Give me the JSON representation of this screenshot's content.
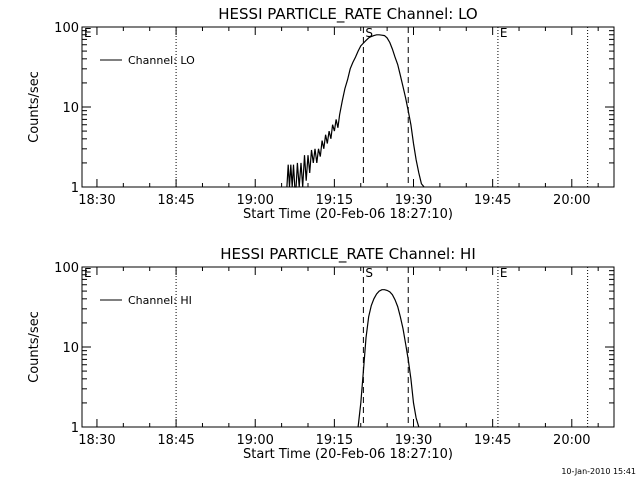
{
  "footer": "10-Jan-2010 15:41",
  "chart_data": [
    {
      "type": "line",
      "title": "HESSI PARTICLE_RATE Channel: LO",
      "xlabel": "Start Time (20-Feb-06 18:27:10)",
      "ylabel": "Counts/sec",
      "yscale": "log",
      "ylim": [
        1,
        100
      ],
      "xlim": [
        "18:27:10",
        "20:08:00"
      ],
      "ytick_labels": [
        "1",
        "10",
        "100"
      ],
      "xtick_labels": [
        "18:30",
        "18:45",
        "19:00",
        "19:15",
        "19:30",
        "19:45",
        "20:00"
      ],
      "legend": "Channel: LO",
      "legend_position": "top-left",
      "markers": {
        "left_E": "E",
        "S": "S",
        "right_E": "E"
      },
      "vertical_lines": {
        "dotted": [
          "18:45:00",
          "19:46:00",
          "20:03:00"
        ],
        "dashed": [
          "19:20:30",
          "19:29:00"
        ]
      },
      "series": [
        {
          "name": "Channel: LO",
          "x": [
            "19:06:00",
            "19:06:15",
            "19:06:30",
            "19:06:45",
            "19:07:00",
            "19:07:15",
            "19:07:30",
            "19:07:45",
            "19:08:00",
            "19:08:20",
            "19:08:40",
            "19:09:00",
            "19:09:20",
            "19:09:40",
            "19:10:00",
            "19:10:20",
            "19:10:40",
            "19:11:00",
            "19:11:20",
            "19:11:40",
            "19:12:00",
            "19:12:20",
            "19:12:40",
            "19:13:00",
            "19:13:20",
            "19:13:40",
            "19:14:00",
            "19:14:20",
            "19:14:40",
            "19:15:00",
            "19:15:20",
            "19:15:40",
            "19:16:00",
            "19:16:30",
            "19:17:00",
            "19:17:30",
            "19:18:00",
            "19:18:30",
            "19:19:00",
            "19:19:30",
            "19:20:00",
            "19:20:30",
            "19:21:00",
            "19:21:30",
            "19:22:00",
            "19:22:30",
            "19:23:00",
            "19:23:30",
            "19:24:00",
            "19:24:30",
            "19:25:00",
            "19:25:30",
            "19:26:00",
            "19:26:30",
            "19:27:00",
            "19:27:30",
            "19:28:00",
            "19:28:30",
            "19:29:00",
            "19:29:30",
            "19:30:00",
            "19:30:30",
            "19:31:00",
            "19:31:30",
            "19:32:00"
          ],
          "values": [
            1.0,
            1.9,
            1.0,
            1.9,
            1.0,
            1.9,
            1.0,
            1.0,
            2.0,
            1.0,
            2.0,
            1.0,
            2.5,
            1.2,
            2.5,
            1.5,
            2.9,
            2.0,
            3.0,
            2.0,
            3.0,
            2.4,
            3.8,
            3.0,
            4.5,
            3.5,
            5.0,
            4.0,
            6.0,
            5.0,
            7.0,
            5.5,
            8.0,
            12,
            17,
            22,
            30,
            36,
            42,
            50,
            58,
            63,
            68,
            73,
            76,
            78,
            80,
            80,
            79,
            78,
            73,
            64,
            53,
            42,
            34,
            25,
            18,
            13,
            9,
            6,
            3.5,
            2.2,
            1.5,
            1.1,
            1.0
          ]
        }
      ]
    },
    {
      "type": "line",
      "title": "HESSI PARTICLE_RATE Channel: HI",
      "xlabel": "Start Time (20-Feb-06 18:27:10)",
      "ylabel": "Counts/sec",
      "yscale": "log",
      "ylim": [
        1,
        100
      ],
      "xlim": [
        "18:27:10",
        "20:08:00"
      ],
      "ytick_labels": [
        "1",
        "10",
        "100"
      ],
      "xtick_labels": [
        "18:30",
        "18:45",
        "19:00",
        "19:15",
        "19:30",
        "19:45",
        "20:00"
      ],
      "legend": "Channel: HI",
      "legend_position": "top-left",
      "markers": {
        "left_E": "E",
        "S": "S",
        "right_E": "E"
      },
      "vertical_lines": {
        "dotted": [
          "18:45:00",
          "19:46:00",
          "20:03:00"
        ],
        "dashed": [
          "19:20:30",
          "19:29:00"
        ]
      },
      "series": [
        {
          "name": "Channel: HI",
          "x": [
            "19:19:30",
            "19:20:00",
            "19:20:30",
            "19:21:00",
            "19:21:30",
            "19:22:00",
            "19:22:30",
            "19:23:00",
            "19:23:30",
            "19:24:00",
            "19:24:30",
            "19:25:00",
            "19:25:30",
            "19:26:00",
            "19:26:30",
            "19:27:00",
            "19:27:30",
            "19:28:00",
            "19:28:30",
            "19:29:00",
            "19:29:30",
            "19:30:00",
            "19:30:30",
            "19:31:00"
          ],
          "values": [
            1.0,
            2.0,
            5.0,
            13,
            24,
            33,
            40,
            46,
            50,
            52,
            52,
            51,
            49,
            45,
            39,
            32,
            24,
            17,
            11,
            7,
            4,
            2,
            1.3,
            1.0
          ]
        }
      ]
    }
  ]
}
